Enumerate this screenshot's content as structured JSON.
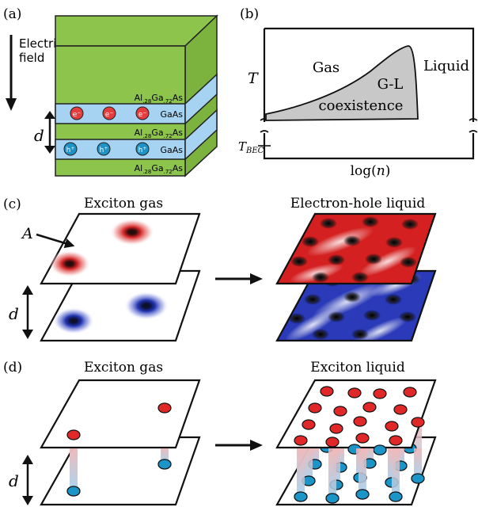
{
  "panel_a": {
    "label": "(a)",
    "field_label_line1": "Electric",
    "field_label_line2": "field",
    "layers": [
      {
        "pre": "Al",
        "sub1": ".28",
        "mid": "Ga",
        "sub2": ".72",
        "post": "As"
      },
      {
        "text": "GaAs"
      },
      {
        "pre": "Al",
        "sub1": ".28",
        "mid": "Ga",
        "sub2": ".72",
        "post": "As"
      },
      {
        "text": "GaAs"
      },
      {
        "pre": "Al",
        "sub1": ".28",
        "mid": "Ga",
        "sub2": ".72",
        "post": "As"
      }
    ],
    "electron_symbol": "e",
    "electron_charge": "−",
    "hole_symbol": "h",
    "hole_charge": "+",
    "distance_label": "d",
    "colors": {
      "barrier": "#8dc44b",
      "well": "#a7d3f2",
      "electron": "#e53d3d",
      "hole": "#1d93c7"
    }
  },
  "panel_b": {
    "label": "(b)",
    "y_label": "T",
    "tbec_main": "T",
    "tbec_sub": "BEC",
    "x_label_pre": "log(",
    "x_label_var": "n",
    "x_label_post": ")",
    "region_gas": "Gas",
    "region_gl_line1": "G-L",
    "region_gl_line2": "coexistence",
    "region_liquid": "Liquid",
    "colors": {
      "coexistence": "#c8c8c8"
    }
  },
  "panel_c": {
    "label": "(c)",
    "left_title": "Exciton gas",
    "right_title": "Electron-hole liquid",
    "area_label": "A",
    "distance_label": "d",
    "colors": {
      "electron": "#d42020",
      "hole": "#1f2fa8"
    }
  },
  "panel_d": {
    "label": "(d)",
    "left_title": "Exciton gas",
    "right_title": "Exciton liquid",
    "distance_label": "d",
    "colors": {
      "electron": "#e02828",
      "hole": "#1b95c8"
    }
  }
}
